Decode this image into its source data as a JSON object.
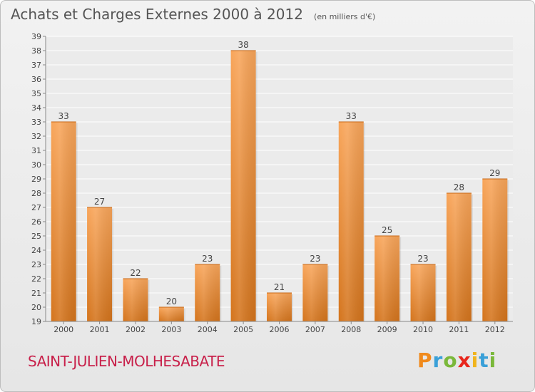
{
  "header": {
    "title": "Achats et Charges Externes 2000 à 2012",
    "subtitle": "(en milliers d'€)"
  },
  "footer": {
    "place_name": "SAINT-JULIEN-MOLHESABATE",
    "logo_text": "Proxiti"
  },
  "colors": {
    "bar_light": "#f8a55a",
    "bar_dark": "#d4741c",
    "place": "#c8204a",
    "logo_letters": [
      "#f08a1c",
      "#3aa0d8",
      "#7ab83a",
      "#e8261c",
      "#f0b41c",
      "#3aa0d8",
      "#7ab83a"
    ]
  },
  "chart_data": {
    "type": "bar",
    "title": "Achats et Charges Externes 2000 à 2012",
    "subtitle": "(en milliers d'€)",
    "categories": [
      "2000",
      "2001",
      "2002",
      "2003",
      "2004",
      "2005",
      "2006",
      "2007",
      "2008",
      "2009",
      "2010",
      "2011",
      "2012"
    ],
    "values": [
      33,
      27,
      22,
      20,
      23,
      38,
      21,
      23,
      33,
      25,
      23,
      28,
      29
    ],
    "ylim": [
      19,
      39
    ],
    "yticks": [
      19,
      20,
      21,
      22,
      23,
      24,
      25,
      26,
      27,
      28,
      29,
      30,
      31,
      32,
      33,
      34,
      35,
      36,
      37,
      38,
      39
    ],
    "grid": true,
    "legend": "none"
  }
}
